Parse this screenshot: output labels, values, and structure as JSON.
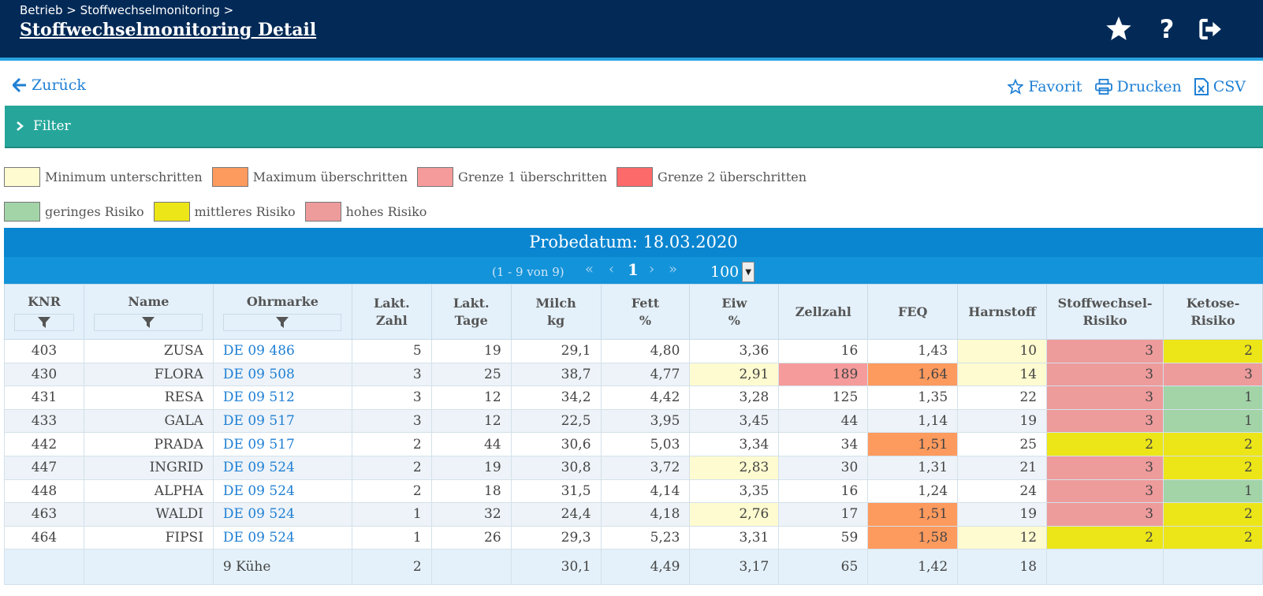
{
  "header": {
    "breadcrumb": "Betrieb > Stoffwechselmonitoring >",
    "title": "Stoffwechselmonitoring Detail",
    "icons": [
      "star-icon",
      "help-icon",
      "logout-icon"
    ]
  },
  "toolbar": {
    "back_label": "Zurück",
    "favorite_label": "Favorit",
    "print_label": "Drucken",
    "csv_label": "CSV"
  },
  "filter": {
    "label": "Filter"
  },
  "legend": {
    "row1": [
      {
        "label": "Minimum unterschritten",
        "color": "#fffbd0"
      },
      {
        "label": "Maximum überschritten",
        "color": "#fd9a5e"
      },
      {
        "label": "Grenze 1 überschritten",
        "color": "#f59b9b"
      },
      {
        "label": "Grenze 2 überschritten",
        "color": "#fd6a6a"
      }
    ],
    "row2": [
      {
        "label": "geringes Risiko",
        "color": "#a3d4a8"
      },
      {
        "label": "mittleres Risiko",
        "color": "#ece518"
      },
      {
        "label": "hohes Risiko",
        "color": "#ee9b9c"
      }
    ]
  },
  "table": {
    "title": "Probedatum: 18.03.2020",
    "pagination": {
      "info": "(1 - 9 von 9)",
      "current_page": "1",
      "page_size": "100"
    },
    "columns": [
      {
        "line1": "KNR",
        "line2": ""
      },
      {
        "line1": "Name",
        "line2": ""
      },
      {
        "line1": "Ohrmarke",
        "line2": ""
      },
      {
        "line1": "Lakt.",
        "line2": "Zahl"
      },
      {
        "line1": "Lakt.",
        "line2": "Tage"
      },
      {
        "line1": "Milch",
        "line2": "kg"
      },
      {
        "line1": "Fett",
        "line2": "%"
      },
      {
        "line1": "Eiw",
        "line2": "%"
      },
      {
        "line1": "Zellzahl",
        "line2": ""
      },
      {
        "line1": "FEQ",
        "line2": ""
      },
      {
        "line1": "Harnstoff",
        "line2": ""
      },
      {
        "line1": "Stoffwechsel-",
        "line2": "Risiko"
      },
      {
        "line1": "Ketose-",
        "line2": "Risiko"
      }
    ],
    "rows": [
      {
        "knr": "403",
        "name": "ZUSA",
        "ohrmarke": "DE 09 486",
        "lakt_zahl": "5",
        "lakt_tage": "19",
        "milch": "29,1",
        "fett": "4,80",
        "eiw": "3,36",
        "zellzahl": "16",
        "feq": "1,43",
        "harnstoff": "10",
        "sw_risiko": "3",
        "ketose": "2"
      },
      {
        "knr": "430",
        "name": "FLORA",
        "ohrmarke": "DE 09 508",
        "lakt_zahl": "3",
        "lakt_tage": "25",
        "milch": "38,7",
        "fett": "4,77",
        "eiw": "2,91",
        "zellzahl": "189",
        "feq": "1,64",
        "harnstoff": "14",
        "sw_risiko": "3",
        "ketose": "3"
      },
      {
        "knr": "431",
        "name": "RESA",
        "ohrmarke": "DE 09 512",
        "lakt_zahl": "3",
        "lakt_tage": "12",
        "milch": "34,2",
        "fett": "4,42",
        "eiw": "3,28",
        "zellzahl": "125",
        "feq": "1,35",
        "harnstoff": "22",
        "sw_risiko": "3",
        "ketose": "1"
      },
      {
        "knr": "433",
        "name": "GALA",
        "ohrmarke": "DE 09 517",
        "lakt_zahl": "3",
        "lakt_tage": "12",
        "milch": "22,5",
        "fett": "3,95",
        "eiw": "3,45",
        "zellzahl": "44",
        "feq": "1,14",
        "harnstoff": "19",
        "sw_risiko": "3",
        "ketose": "1"
      },
      {
        "knr": "442",
        "name": "PRADA",
        "ohrmarke": "DE 09 517",
        "lakt_zahl": "2",
        "lakt_tage": "44",
        "milch": "30,6",
        "fett": "5,03",
        "eiw": "3,34",
        "zellzahl": "34",
        "feq": "1,51",
        "harnstoff": "25",
        "sw_risiko": "2",
        "ketose": "2"
      },
      {
        "knr": "447",
        "name": "INGRID",
        "ohrmarke": "DE 09 524",
        "lakt_zahl": "2",
        "lakt_tage": "19",
        "milch": "30,8",
        "fett": "3,72",
        "eiw": "2,83",
        "zellzahl": "30",
        "feq": "1,31",
        "harnstoff": "21",
        "sw_risiko": "3",
        "ketose": "2"
      },
      {
        "knr": "448",
        "name": "ALPHA",
        "ohrmarke": "DE 09 524",
        "lakt_zahl": "2",
        "lakt_tage": "18",
        "milch": "31,5",
        "fett": "4,14",
        "eiw": "3,35",
        "zellzahl": "16",
        "feq": "1,24",
        "harnstoff": "24",
        "sw_risiko": "3",
        "ketose": "1"
      },
      {
        "knr": "463",
        "name": "WALDI",
        "ohrmarke": "DE 09 524",
        "lakt_zahl": "1",
        "lakt_tage": "32",
        "milch": "24,4",
        "fett": "4,18",
        "eiw": "2,76",
        "zellzahl": "17",
        "feq": "1,51",
        "harnstoff": "19",
        "sw_risiko": "3",
        "ketose": "2"
      },
      {
        "knr": "464",
        "name": "FIPSI",
        "ohrmarke": "DE 09 524",
        "lakt_zahl": "1",
        "lakt_tage": "26",
        "milch": "29,3",
        "fett": "5,23",
        "eiw": "3,31",
        "zellzahl": "59",
        "feq": "1,58",
        "harnstoff": "12",
        "sw_risiko": "2",
        "ketose": "2"
      }
    ],
    "footer": {
      "count": "9 Kühe",
      "lakt_zahl": "2",
      "milch": "30,1",
      "fett": "4,49",
      "eiw": "3,17",
      "zellzahl": "65",
      "feq": "1,42",
      "harnstoff": "18"
    }
  }
}
